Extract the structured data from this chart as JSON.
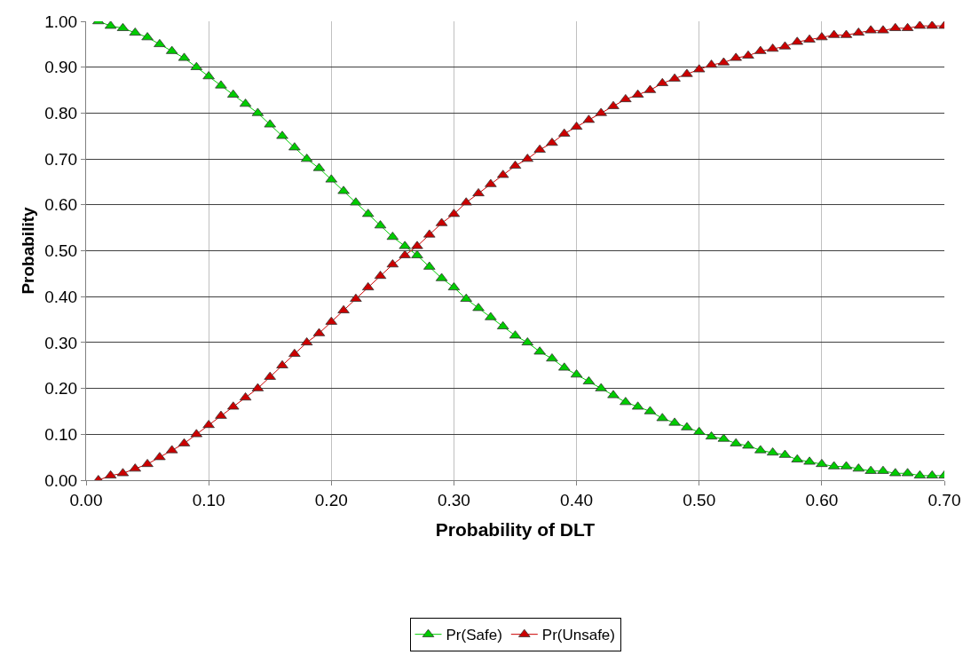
{
  "chart_data": {
    "type": "line",
    "xlabel": "Probability of DLT",
    "ylabel": "Probability",
    "x": [
      0.01,
      0.02,
      0.03,
      0.04,
      0.05,
      0.06,
      0.07,
      0.08,
      0.09,
      0.1,
      0.11,
      0.12,
      0.13,
      0.14,
      0.15,
      0.16,
      0.17,
      0.18,
      0.19,
      0.2,
      0.21,
      0.22,
      0.23,
      0.24,
      0.25,
      0.26,
      0.27,
      0.28,
      0.29,
      0.3,
      0.31,
      0.32,
      0.33,
      0.34,
      0.35,
      0.36,
      0.37,
      0.38,
      0.39,
      0.4,
      0.41,
      0.42,
      0.43,
      0.44,
      0.45,
      0.46,
      0.47,
      0.48,
      0.49,
      0.5,
      0.51,
      0.52,
      0.53,
      0.54,
      0.55,
      0.56,
      0.57,
      0.58,
      0.59,
      0.6,
      0.61,
      0.62,
      0.63,
      0.64,
      0.65,
      0.66,
      0.67,
      0.68,
      0.69,
      0.7
    ],
    "series": [
      {
        "name": "Pr(Safe)",
        "color": "#00cc00",
        "values": [
          1.0,
          0.99,
          0.985,
          0.975,
          0.965,
          0.95,
          0.935,
          0.92,
          0.9,
          0.88,
          0.86,
          0.84,
          0.82,
          0.8,
          0.775,
          0.75,
          0.725,
          0.7,
          0.68,
          0.655,
          0.63,
          0.605,
          0.58,
          0.555,
          0.53,
          0.51,
          0.49,
          0.465,
          0.44,
          0.42,
          0.395,
          0.375,
          0.355,
          0.335,
          0.315,
          0.3,
          0.28,
          0.265,
          0.245,
          0.23,
          0.215,
          0.2,
          0.185,
          0.17,
          0.16,
          0.15,
          0.135,
          0.125,
          0.115,
          0.105,
          0.095,
          0.09,
          0.08,
          0.075,
          0.065,
          0.06,
          0.055,
          0.045,
          0.04,
          0.035,
          0.03,
          0.03,
          0.025,
          0.02,
          0.02,
          0.015,
          0.015,
          0.01,
          0.01,
          0.01
        ]
      },
      {
        "name": "Pr(Unsafe)",
        "color": "#cc0000",
        "values": [
          0.0,
          0.01,
          0.015,
          0.025,
          0.035,
          0.05,
          0.065,
          0.08,
          0.1,
          0.12,
          0.14,
          0.16,
          0.18,
          0.2,
          0.225,
          0.25,
          0.275,
          0.3,
          0.32,
          0.345,
          0.37,
          0.395,
          0.42,
          0.445,
          0.47,
          0.49,
          0.51,
          0.535,
          0.56,
          0.58,
          0.605,
          0.625,
          0.645,
          0.665,
          0.685,
          0.7,
          0.72,
          0.735,
          0.755,
          0.77,
          0.785,
          0.8,
          0.815,
          0.83,
          0.84,
          0.85,
          0.865,
          0.875,
          0.885,
          0.895,
          0.905,
          0.91,
          0.92,
          0.925,
          0.935,
          0.94,
          0.945,
          0.955,
          0.96,
          0.965,
          0.97,
          0.97,
          0.975,
          0.98,
          0.98,
          0.985,
          0.985,
          0.99,
          0.99,
          0.99
        ]
      }
    ],
    "xlim": [
      0,
      0.7
    ],
    "xticks": [
      {
        "value": 0,
        "label": "0.00"
      },
      {
        "value": 0.1,
        "label": "0.10"
      },
      {
        "value": 0.2,
        "label": "0.20"
      },
      {
        "value": 0.3,
        "label": "0.30"
      },
      {
        "value": 0.4,
        "label": "0.40"
      },
      {
        "value": 0.5,
        "label": "0.50"
      },
      {
        "value": 0.6,
        "label": "0.60"
      },
      {
        "value": 0.7,
        "label": "0.70"
      }
    ],
    "ylim": [
      0,
      1
    ],
    "yticks": [
      {
        "value": 0,
        "label": "0.00"
      },
      {
        "value": 0.1,
        "label": "0.10"
      },
      {
        "value": 0.2,
        "label": "0.20"
      },
      {
        "value": 0.3,
        "label": "0.30"
      },
      {
        "value": 0.4,
        "label": "0.40"
      },
      {
        "value": 0.5,
        "label": "0.50"
      },
      {
        "value": 0.6,
        "label": "0.60"
      },
      {
        "value": 0.7,
        "label": "0.70"
      },
      {
        "value": 0.8,
        "label": "0.80"
      },
      {
        "value": 0.9,
        "label": "0.90"
      },
      {
        "value": 1,
        "label": "1.00"
      }
    ],
    "grid": true,
    "legend": "bottom",
    "marker": "triangle",
    "line_style": "solid"
  }
}
